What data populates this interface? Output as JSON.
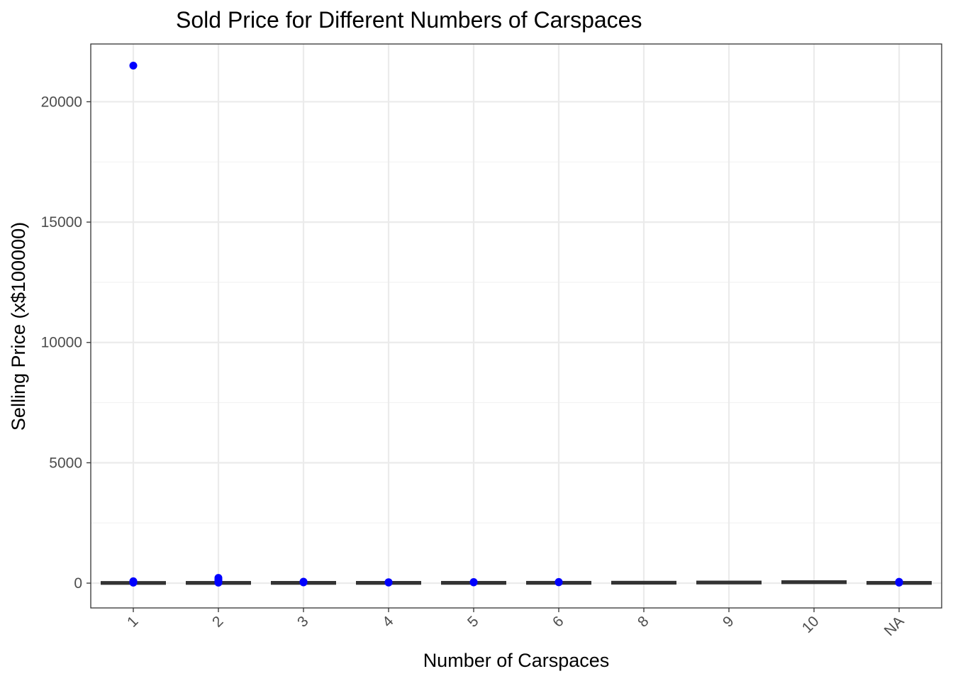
{
  "chart_data": {
    "type": "box",
    "title": "Sold Price for Different Numbers of Carspaces",
    "xlabel": "Number of Carspaces",
    "ylabel": "Selling Price (x$100000)",
    "categories": [
      "1",
      "2",
      "3",
      "4",
      "5",
      "6",
      "8",
      "9",
      "10",
      "NA"
    ],
    "ylim": [
      -1030,
      22400
    ],
    "y_ticks": [
      0,
      5000,
      10000,
      15000,
      20000
    ],
    "grid": true,
    "boxes": [
      {
        "category": "1",
        "median": 8,
        "q1": 5,
        "q3": 12
      },
      {
        "category": "2",
        "median": 10,
        "q1": 6,
        "q3": 15
      },
      {
        "category": "3",
        "median": 11,
        "q1": 7,
        "q3": 16
      },
      {
        "category": "4",
        "median": 11,
        "q1": 7,
        "q3": 16
      },
      {
        "category": "5",
        "median": 12,
        "q1": 8,
        "q3": 17
      },
      {
        "category": "6",
        "median": 13,
        "q1": 9,
        "q3": 18
      },
      {
        "category": "8",
        "median": 18,
        "q1": 15,
        "q3": 22
      },
      {
        "category": "9",
        "median": 25,
        "q1": 22,
        "q3": 30
      },
      {
        "category": "10",
        "median": 40,
        "q1": 35,
        "q3": 45
      },
      {
        "category": "NA",
        "median": 10,
        "q1": 6,
        "q3": 15
      }
    ],
    "outliers": [
      {
        "category": "1",
        "values": [
          21500,
          80,
          60,
          40,
          20
        ]
      },
      {
        "category": "2",
        "values": [
          220,
          150,
          90,
          60,
          40,
          20
        ]
      },
      {
        "category": "3",
        "values": [
          60,
          45,
          30
        ]
      },
      {
        "category": "4",
        "values": [
          40,
          25
        ]
      },
      {
        "category": "5",
        "values": [
          45,
          30
        ]
      },
      {
        "category": "6",
        "values": [
          50,
          35
        ]
      },
      {
        "category": "NA",
        "values": [
          55,
          35,
          20
        ]
      }
    ],
    "colors": {
      "outlier": "#0000ff",
      "box": "#333333",
      "grid_major": "#ebebeb",
      "grid_minor": "#f2f2f2",
      "panel_border": "#333333",
      "tick_text": "#4d4d4d"
    }
  }
}
